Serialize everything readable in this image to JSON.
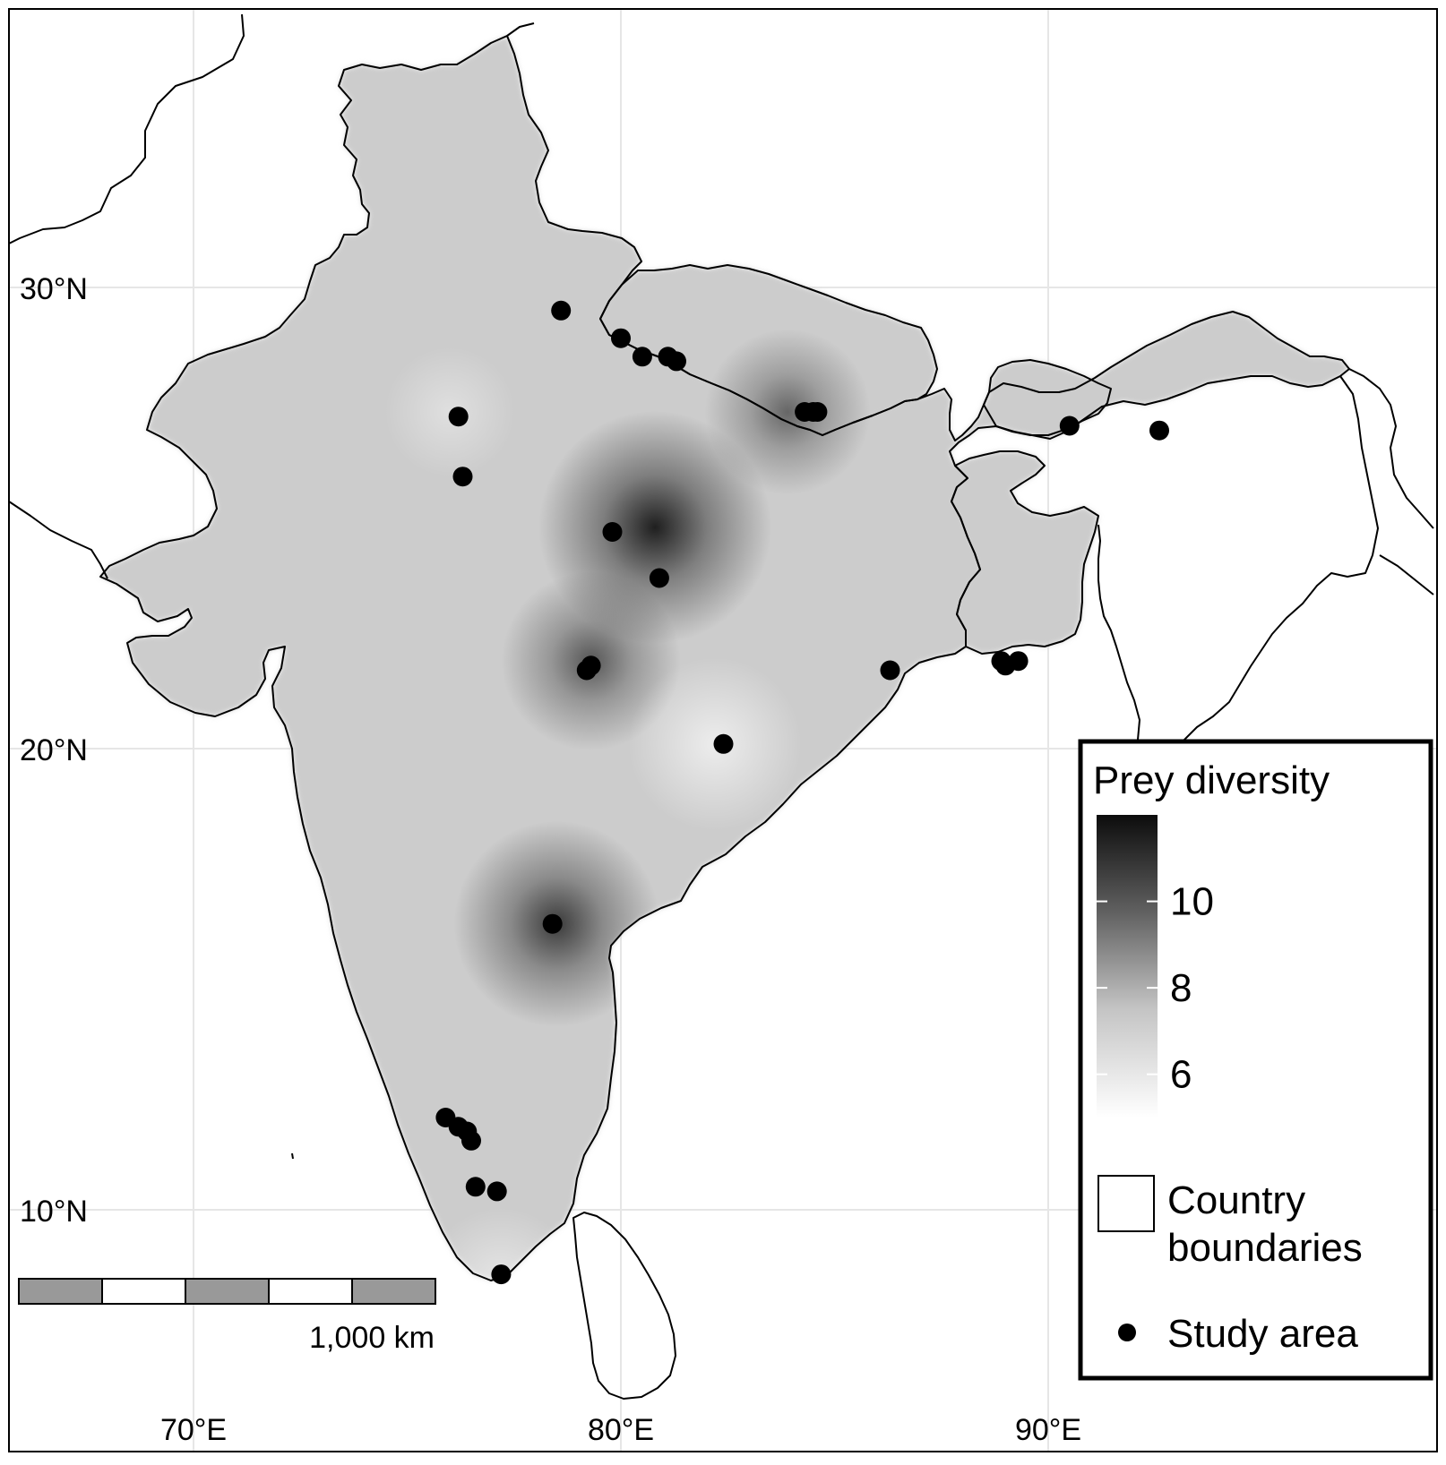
{
  "map": {
    "grid": {
      "lat_labels": [
        "30°N",
        "20°N",
        "10°N"
      ],
      "lon_labels": [
        "70°E",
        "80°E",
        "90°E"
      ]
    },
    "legend": {
      "title": "Prey diversity",
      "ticks": [
        {
          "value": 10,
          "label": "10"
        },
        {
          "value": 8,
          "label": "8"
        },
        {
          "value": 6,
          "label": "6"
        }
      ],
      "range": [
        5,
        12
      ],
      "boundary_label_line1": "Country",
      "boundary_label_line2": "boundaries",
      "study_label": "Study area"
    },
    "scale_bar": {
      "label": "1,000 km"
    },
    "colors": {
      "background": "#ffffff",
      "land": "#cccccc",
      "hot": "#1f1f1f",
      "cold": "#ffffff",
      "boundary": "#000000",
      "grid": "#e6e6e6",
      "point": "#000000"
    },
    "hotspots": [
      {
        "lon": 80.8,
        "lat": 24.8,
        "value": 11.0
      },
      {
        "lon": 78.5,
        "lat": 16.2,
        "value": 10.0
      },
      {
        "lon": 79.3,
        "lat": 21.9,
        "value": 9.0
      },
      {
        "lon": 83.9,
        "lat": 27.3,
        "value": 8.5
      },
      {
        "lon": 82.2,
        "lat": 20.1,
        "value": 5.2
      },
      {
        "lon": 77.2,
        "lat": 8.4,
        "value": 6.0
      },
      {
        "lon": 76.0,
        "lat": 27.3,
        "value": 6.8
      }
    ],
    "study_areas": [
      {
        "lon": 78.6,
        "lat": 29.5
      },
      {
        "lon": 80.0,
        "lat": 28.9
      },
      {
        "lon": 80.5,
        "lat": 28.5
      },
      {
        "lon": 81.1,
        "lat": 28.5
      },
      {
        "lon": 81.3,
        "lat": 28.4
      },
      {
        "lon": 84.3,
        "lat": 27.3
      },
      {
        "lon": 84.5,
        "lat": 27.3
      },
      {
        "lon": 84.6,
        "lat": 27.3
      },
      {
        "lon": 76.2,
        "lat": 27.2
      },
      {
        "lon": 76.3,
        "lat": 25.9
      },
      {
        "lon": 79.8,
        "lat": 24.7
      },
      {
        "lon": 80.9,
        "lat": 23.7
      },
      {
        "lon": 79.3,
        "lat": 21.8
      },
      {
        "lon": 79.2,
        "lat": 21.7
      },
      {
        "lon": 82.4,
        "lat": 20.1
      },
      {
        "lon": 86.3,
        "lat": 21.7
      },
      {
        "lon": 88.9,
        "lat": 21.9
      },
      {
        "lon": 89.0,
        "lat": 21.8
      },
      {
        "lon": 89.3,
        "lat": 21.9
      },
      {
        "lon": 90.5,
        "lat": 27.0
      },
      {
        "lon": 92.6,
        "lat": 26.9
      },
      {
        "lon": 78.4,
        "lat": 16.2
      },
      {
        "lon": 75.9,
        "lat": 12.0
      },
      {
        "lon": 76.2,
        "lat": 11.8
      },
      {
        "lon": 76.4,
        "lat": 11.7
      },
      {
        "lon": 76.5,
        "lat": 11.5
      },
      {
        "lon": 76.6,
        "lat": 10.5
      },
      {
        "lon": 77.1,
        "lat": 10.4
      },
      {
        "lon": 77.2,
        "lat": 8.6
      }
    ]
  }
}
